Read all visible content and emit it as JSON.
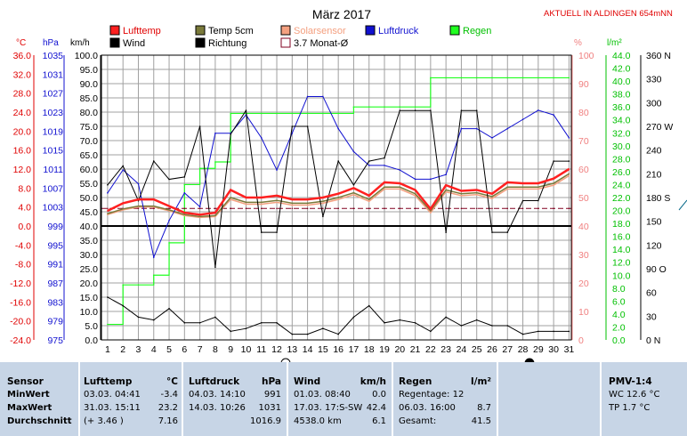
{
  "header": {
    "title": "März 2017",
    "station": "AKTUELL IN ALDINGEN 654mNN"
  },
  "legend": [
    {
      "label": "Lufttemp",
      "color": "#ff2020"
    },
    {
      "label": "Temp 5cm",
      "color": "#7a7a3a"
    },
    {
      "label": "Solarsensor",
      "color": "#f4a080"
    },
    {
      "label": "Luftdruck",
      "color": "#1010d0"
    },
    {
      "label": "Regen",
      "color": "#20ff20"
    },
    {
      "label": "Wind",
      "color": "#000000"
    },
    {
      "label": "Richtung",
      "color": "#000000"
    },
    {
      "label": "3.7 Monat-Ø",
      "color": "#ffffff"
    }
  ],
  "axes": {
    "temp_unit": "°C",
    "hpa_unit": "hPa",
    "kmh_unit": "km/h",
    "pct_unit": "%",
    "lm2_unit": "l/m²",
    "deg_unit": "°N",
    "temp_ticks": [
      "36.0",
      "32.0",
      "28.0",
      "24.0",
      "20.0",
      "16.0",
      "12.0",
      "8.0",
      "4.0",
      "0.0",
      "-4.0",
      "-8.0",
      "-12.0",
      "-16.0",
      "-20.0",
      "-24.0"
    ],
    "hpa_ticks": [
      "1035",
      "1031",
      "1027",
      "1023",
      "1019",
      "1015",
      "1011",
      "1007",
      "1003",
      "999",
      "995",
      "991",
      "987",
      "983",
      "979",
      "975"
    ],
    "kmh_ticks": [
      "100.0",
      "95.0",
      "90.0",
      "85.0",
      "80.0",
      "75.0",
      "70.0",
      "65.0",
      "60.0",
      "55.0",
      "50.0",
      "45.0",
      "40.0",
      "35.0",
      "30.0",
      "25.0",
      "20.0",
      "15.0",
      "10.0",
      "5.0",
      "0.0"
    ],
    "pct_ticks": [
      "100",
      "90",
      "80",
      "70",
      "60",
      "50",
      "40",
      "30",
      "20",
      "10",
      "0"
    ],
    "lm2_ticks": [
      "44.0",
      "42.0",
      "40.0",
      "38.0",
      "36.0",
      "34.0",
      "32.0",
      "30.0",
      "28.0",
      "26.0",
      "24.0",
      "22.0",
      "20.0",
      "18.0",
      "16.0",
      "14.0",
      "12.0",
      "10.0",
      "8.0",
      "6.0",
      "4.0",
      "2.0",
      "0.0"
    ],
    "deg_ticks": [
      "360 N",
      "330",
      "300",
      "270 W",
      "240",
      "210",
      "180 S",
      "150",
      "120",
      "90 O",
      "60",
      "30",
      "0 N"
    ],
    "x_ticks": [
      "1",
      "2",
      "3",
      "4",
      "5",
      "6",
      "7",
      "8",
      "9",
      "10",
      "11",
      "12",
      "13",
      "14",
      "15",
      "16",
      "17",
      "18",
      "19",
      "20",
      "21",
      "22",
      "23",
      "24",
      "25",
      "26",
      "27",
      "28",
      "29",
      "30",
      "31"
    ]
  },
  "chart_data": {
    "type": "line",
    "title": "März 2017",
    "x": [
      1,
      2,
      3,
      4,
      5,
      6,
      7,
      8,
      9,
      10,
      11,
      12,
      13,
      14,
      15,
      16,
      17,
      18,
      19,
      20,
      21,
      22,
      23,
      24,
      25,
      26,
      27,
      28,
      29,
      30,
      31
    ],
    "ylim_temp": [
      -24,
      36
    ],
    "ylim_hpa": [
      975,
      1037
    ],
    "ylim_kmh": [
      0,
      100
    ],
    "ylim_pct": [
      0,
      100
    ],
    "ylim_lm2": [
      0,
      44
    ],
    "ylim_deg": [
      0,
      360
    ],
    "series": [
      {
        "name": "Lufttemp",
        "axis": "temp",
        "color": "#ff2020",
        "values": [
          3.2,
          4.8,
          5.6,
          5.6,
          4.2,
          2.8,
          2.4,
          2.8,
          7.6,
          6.0,
          6.0,
          6.4,
          5.6,
          5.6,
          6.0,
          6.8,
          8.0,
          6.4,
          9.2,
          9.0,
          7.6,
          3.6,
          8.6,
          7.4,
          7.6,
          6.8,
          9.2,
          9.0,
          9.0,
          10.0,
          12.0
        ]
      },
      {
        "name": "Temp 5cm",
        "axis": "temp",
        "color": "#7a7a3a",
        "values": [
          2.6,
          3.6,
          4.2,
          4.2,
          3.4,
          2.4,
          2.0,
          2.2,
          6.0,
          5.0,
          5.0,
          5.4,
          4.8,
          4.8,
          5.2,
          6.0,
          7.0,
          5.6,
          8.2,
          8.2,
          6.8,
          3.2,
          7.6,
          6.8,
          7.0,
          6.2,
          8.2,
          8.2,
          8.2,
          9.0,
          11.0
        ]
      },
      {
        "name": "Solarsensor",
        "axis": "temp",
        "color": "#f4a080",
        "values": [
          2.4,
          3.4,
          4.0,
          4.0,
          3.2,
          2.2,
          1.8,
          2.0,
          5.6,
          4.6,
          4.6,
          5.0,
          4.4,
          4.4,
          4.8,
          5.6,
          6.6,
          5.2,
          7.8,
          7.8,
          6.4,
          2.8,
          7.2,
          6.4,
          6.6,
          5.8,
          7.8,
          7.8,
          7.8,
          8.6,
          10.6
        ]
      },
      {
        "name": "Luftdruck",
        "axis": "hpa",
        "color": "#1010d0",
        "values": [
          1007,
          1012,
          1009,
          993,
          1001,
          1007,
          1004,
          1020,
          1020,
          1024,
          1019,
          1012,
          1020,
          1028,
          1028,
          1021,
          1016,
          1013,
          1013,
          1012,
          1010,
          1010,
          1011,
          1021,
          1021,
          1019,
          1021,
          1023,
          1025,
          1024,
          1019
        ]
      },
      {
        "name": "Regen",
        "axis": "lm2",
        "color": "#20ff20",
        "values": [
          2.4,
          8.5,
          8.5,
          10.0,
          15.0,
          24.0,
          26.5,
          27.5,
          35.0,
          35.0,
          35.0,
          35.0,
          35.0,
          35.0,
          35.0,
          35.0,
          36.0,
          36.0,
          36.0,
          36.0,
          36.0,
          40.5,
          40.5,
          40.5,
          40.5,
          40.5,
          40.5,
          40.5,
          40.5,
          40.5,
          40.5
        ]
      },
      {
        "name": "Wind",
        "axis": "kmh",
        "color": "#000000",
        "values": [
          15,
          12,
          8,
          7,
          11,
          6,
          6,
          8,
          3,
          4,
          6,
          6,
          2,
          2,
          4,
          2,
          8,
          12,
          6,
          7,
          6,
          3,
          8,
          5,
          7,
          5,
          5,
          2,
          3,
          3,
          3
        ]
      },
      {
        "name": "Richtung",
        "axis": "deg",
        "color": "#000000",
        "values": [
          196,
          220,
          176,
          226,
          203,
          206,
          270,
          92,
          260,
          290,
          136,
          136,
          270,
          270,
          156,
          226,
          196,
          226,
          230,
          290,
          290,
          290,
          136,
          290,
          290,
          136,
          136,
          176,
          176,
          226,
          226
        ]
      },
      {
        "name": "3.7 Monat-Ø",
        "axis": "temp",
        "color": "#800020",
        "values": [
          3.7,
          3.7,
          3.7,
          3.7,
          3.7,
          3.7,
          3.7,
          3.7,
          3.7,
          3.7,
          3.7,
          3.7,
          3.7,
          3.7,
          3.7,
          3.7,
          3.7,
          3.7,
          3.7,
          3.7,
          3.7,
          3.7,
          3.7,
          3.7,
          3.7,
          3.7,
          3.7,
          3.7,
          3.7,
          3.7,
          3.7
        ]
      }
    ]
  },
  "table": {
    "sensor": {
      "header": "Sensor",
      "rows": [
        "MinWert",
        "MaxWert",
        "Durchschnitt"
      ]
    },
    "lufttemp": {
      "header": "Lufttemp",
      "unit": "°C",
      "rows": [
        [
          "03.03.  04:41",
          "-3.4"
        ],
        [
          "31.03.  15:11",
          "23.2"
        ],
        [
          "(+ 3.46 )",
          "7.16"
        ]
      ]
    },
    "luftdruck": {
      "header": "Luftdruck",
      "unit": "hPa",
      "rows": [
        [
          "04.03.  14:10",
          "991"
        ],
        [
          "14.03.  10:26",
          "1031"
        ],
        [
          "",
          "1016.9"
        ]
      ]
    },
    "wind": {
      "header": "Wind",
      "unit": "km/h",
      "rows": [
        [
          "01.03.  08:40",
          "0.0"
        ],
        [
          "17.03.  17:S-SW",
          "42.4"
        ],
        [
          "4538.0 km",
          "6.1"
        ]
      ]
    },
    "regen": {
      "header": "Regen",
      "unit": "l/m²",
      "rows": [
        [
          "Regentage: 12",
          ""
        ],
        [
          "06.03.  16:00",
          "8.7"
        ],
        [
          "Gesamt:",
          "41.5"
        ]
      ]
    },
    "pmv": {
      "header": "PMV-1:4",
      "rows": [
        "WC 12.6 °C",
        "TP 1.7 °C"
      ]
    }
  }
}
